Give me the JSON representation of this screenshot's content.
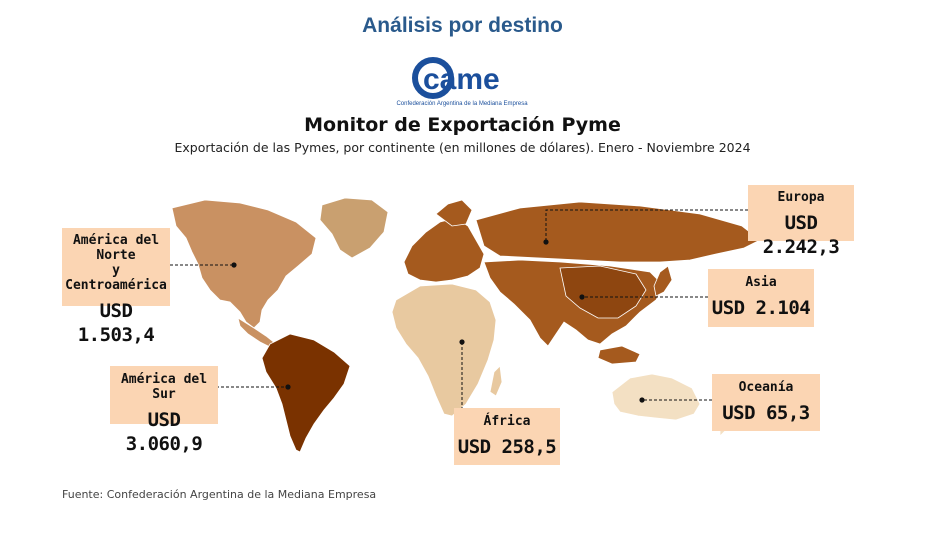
{
  "page": {
    "heading": "Análisis por destino",
    "logo_text": "came",
    "logo_caption": "Confederación Argentina de la Mediana Empresa",
    "title": "Monitor de Exportación Pyme",
    "subtitle": "Exportación de las Pymes, por continente (en millones de dólares). Enero - Noviembre 2024",
    "source": "Fuente: Confederación Argentina de la Mediana Empresa"
  },
  "colors": {
    "label_bg": "#fbd5b3",
    "heading": "#2a5a8c",
    "logo_blue": "#1b4f9c",
    "south_america": "#7a3200",
    "europe_asia": "#a55a1e",
    "north_america": "#c99162",
    "africa": "#e8c9a0",
    "oceania": "#f3e0c3",
    "unassigned": "#c9a070"
  },
  "regions": [
    {
      "key": "north_america",
      "name_line1": "América del Norte",
      "name_line2": "y Centroamérica",
      "value": "USD 1.503,4",
      "amount": 1503.4
    },
    {
      "key": "south_america",
      "name_line1": "América del Sur",
      "value": "USD 3.060,9",
      "amount": 3060.9
    },
    {
      "key": "europe",
      "name_line1": "Europa",
      "value": "USD 2.242,3",
      "amount": 2242.3
    },
    {
      "key": "asia",
      "name_line1": "Asia",
      "value": "USD 2.104",
      "amount": 2104
    },
    {
      "key": "africa",
      "name_line1": "África",
      "value": "USD 258,5",
      "amount": 258.5
    },
    {
      "key": "oceania",
      "name_line1": "Oceanía",
      "value": "USD 65,3",
      "amount": 65.3
    }
  ]
}
